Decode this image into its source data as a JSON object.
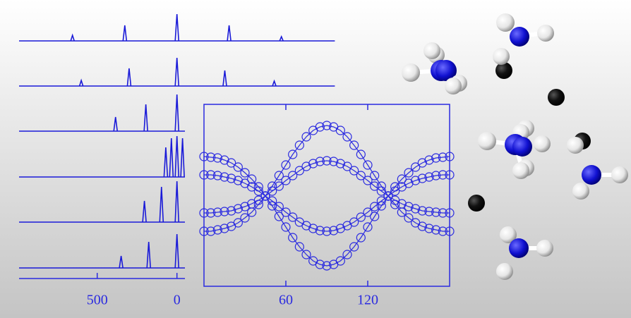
{
  "chart_data": [
    {
      "type": "spectra",
      "xlim": [
        990,
        -50
      ],
      "xticks": [
        500,
        0
      ],
      "color": "#1a1ad8",
      "traces": [
        {
          "xrange": [
            990,
            -990
          ],
          "peaks": [
            655,
            327,
            0,
            -327,
            -655
          ],
          "intensities": [
            8,
            22,
            38,
            22,
            6
          ]
        },
        {
          "xrange": [
            990,
            -990
          ],
          "peaks": [
            600,
            300,
            0,
            -300,
            -610
          ],
          "intensities": [
            8,
            25,
            40,
            22,
            7
          ]
        },
        {
          "xrange": [
            990,
            -50
          ],
          "peaks": [
            385,
            195,
            0
          ],
          "intensities": [
            20,
            38,
            52
          ]
        },
        {
          "xrange": [
            990,
            -50
          ],
          "peaks": [
            70,
            35,
            0,
            -35
          ],
          "intensities": [
            42,
            55,
            58,
            55
          ]
        },
        {
          "xrange": [
            990,
            -50
          ],
          "peaks": [
            204,
            97,
            0
          ],
          "intensities": [
            30,
            50,
            58
          ]
        },
        {
          "xrange": [
            990,
            -50
          ],
          "peaks": [
            350,
            177,
            0
          ],
          "intensities": [
            17,
            37,
            48
          ]
        }
      ]
    },
    {
      "type": "line",
      "xlim": [
        0,
        180
      ],
      "ylim": [
        -1.28,
        1.3
      ],
      "xticks": [
        60,
        120
      ],
      "x": [
        0,
        5,
        10,
        15,
        20,
        25,
        30,
        35,
        40,
        45,
        50,
        55,
        60,
        65,
        70,
        75,
        80,
        85,
        90,
        95,
        100,
        105,
        110,
        115,
        120,
        125,
        130,
        135,
        140,
        145,
        150,
        155,
        160,
        165,
        170,
        175,
        180
      ],
      "series": [
        {
          "color": "#2a2ae0",
          "values": [
            0.56,
            0.55,
            0.54,
            0.51,
            0.47,
            0.41,
            0.33,
            0.24,
            0.13,
            0,
            -0.14,
            -0.29,
            -0.44,
            -0.59,
            -0.72,
            -0.83,
            -0.92,
            -0.97,
            -0.99,
            -0.97,
            -0.92,
            -0.83,
            -0.72,
            -0.59,
            -0.44,
            -0.29,
            -0.14,
            0,
            0.13,
            0.24,
            0.33,
            0.41,
            0.47,
            0.51,
            0.54,
            0.55,
            0.56
          ]
        },
        {
          "color": "#2a2ae0",
          "values": [
            0.3,
            0.3,
            0.29,
            0.27,
            0.25,
            0.22,
            0.18,
            0.13,
            0.07,
            0,
            -0.07,
            -0.15,
            -0.23,
            -0.3,
            -0.37,
            -0.42,
            -0.46,
            -0.49,
            -0.5,
            -0.49,
            -0.46,
            -0.42,
            -0.37,
            -0.3,
            -0.23,
            -0.15,
            -0.07,
            0,
            0.07,
            0.13,
            0.18,
            0.22,
            0.25,
            0.27,
            0.29,
            0.3,
            0.3
          ]
        },
        {
          "color": "#2a2ae0",
          "values": [
            -0.24,
            -0.24,
            -0.23,
            -0.22,
            -0.21,
            -0.18,
            -0.15,
            -0.11,
            -0.06,
            0,
            0.07,
            0.14,
            0.22,
            0.29,
            0.36,
            0.42,
            0.46,
            0.49,
            0.5,
            0.49,
            0.46,
            0.42,
            0.36,
            0.29,
            0.22,
            0.14,
            0.07,
            0,
            -0.06,
            -0.11,
            -0.15,
            -0.18,
            -0.21,
            -0.22,
            -0.23,
            -0.24,
            -0.24
          ]
        },
        {
          "color": "#2a2ae0",
          "values": [
            -0.5,
            -0.5,
            -0.48,
            -0.46,
            -0.43,
            -0.38,
            -0.31,
            -0.23,
            -0.12,
            0,
            0.14,
            0.29,
            0.44,
            0.59,
            0.72,
            0.84,
            0.93,
            0.98,
            1.0,
            0.98,
            0.93,
            0.84,
            0.72,
            0.59,
            0.44,
            0.29,
            0.14,
            0,
            -0.12,
            -0.23,
            -0.31,
            -0.38,
            -0.43,
            -0.46,
            -0.48,
            -0.5,
            -0.5
          ]
        }
      ]
    }
  ]
}
